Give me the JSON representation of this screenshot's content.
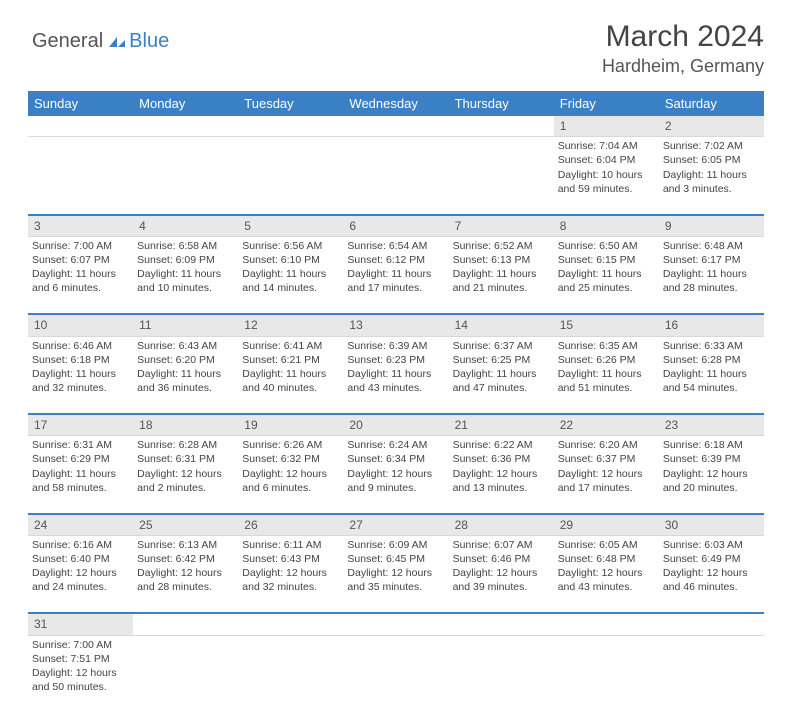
{
  "logo": {
    "part1": "General",
    "part2": "Blue"
  },
  "title": "March 2024",
  "location": "Hardheim, Germany",
  "colors": {
    "header_bg": "#3b7fc4",
    "header_text": "#ffffff",
    "daynum_bg": "#e8e8e8",
    "separator": "#3b7fc4",
    "text": "#444444"
  },
  "weekdays": [
    "Sunday",
    "Monday",
    "Tuesday",
    "Wednesday",
    "Thursday",
    "Friday",
    "Saturday"
  ],
  "weeks": [
    {
      "nums": [
        "",
        "",
        "",
        "",
        "",
        "1",
        "2"
      ],
      "cells": [
        null,
        null,
        null,
        null,
        null,
        {
          "sunrise": "Sunrise: 7:04 AM",
          "sunset": "Sunset: 6:04 PM",
          "daylight": "Daylight: 10 hours and 59 minutes."
        },
        {
          "sunrise": "Sunrise: 7:02 AM",
          "sunset": "Sunset: 6:05 PM",
          "daylight": "Daylight: 11 hours and 3 minutes."
        }
      ]
    },
    {
      "nums": [
        "3",
        "4",
        "5",
        "6",
        "7",
        "8",
        "9"
      ],
      "cells": [
        {
          "sunrise": "Sunrise: 7:00 AM",
          "sunset": "Sunset: 6:07 PM",
          "daylight": "Daylight: 11 hours and 6 minutes."
        },
        {
          "sunrise": "Sunrise: 6:58 AM",
          "sunset": "Sunset: 6:09 PM",
          "daylight": "Daylight: 11 hours and 10 minutes."
        },
        {
          "sunrise": "Sunrise: 6:56 AM",
          "sunset": "Sunset: 6:10 PM",
          "daylight": "Daylight: 11 hours and 14 minutes."
        },
        {
          "sunrise": "Sunrise: 6:54 AM",
          "sunset": "Sunset: 6:12 PM",
          "daylight": "Daylight: 11 hours and 17 minutes."
        },
        {
          "sunrise": "Sunrise: 6:52 AM",
          "sunset": "Sunset: 6:13 PM",
          "daylight": "Daylight: 11 hours and 21 minutes."
        },
        {
          "sunrise": "Sunrise: 6:50 AM",
          "sunset": "Sunset: 6:15 PM",
          "daylight": "Daylight: 11 hours and 25 minutes."
        },
        {
          "sunrise": "Sunrise: 6:48 AM",
          "sunset": "Sunset: 6:17 PM",
          "daylight": "Daylight: 11 hours and 28 minutes."
        }
      ]
    },
    {
      "nums": [
        "10",
        "11",
        "12",
        "13",
        "14",
        "15",
        "16"
      ],
      "cells": [
        {
          "sunrise": "Sunrise: 6:46 AM",
          "sunset": "Sunset: 6:18 PM",
          "daylight": "Daylight: 11 hours and 32 minutes."
        },
        {
          "sunrise": "Sunrise: 6:43 AM",
          "sunset": "Sunset: 6:20 PM",
          "daylight": "Daylight: 11 hours and 36 minutes."
        },
        {
          "sunrise": "Sunrise: 6:41 AM",
          "sunset": "Sunset: 6:21 PM",
          "daylight": "Daylight: 11 hours and 40 minutes."
        },
        {
          "sunrise": "Sunrise: 6:39 AM",
          "sunset": "Sunset: 6:23 PM",
          "daylight": "Daylight: 11 hours and 43 minutes."
        },
        {
          "sunrise": "Sunrise: 6:37 AM",
          "sunset": "Sunset: 6:25 PM",
          "daylight": "Daylight: 11 hours and 47 minutes."
        },
        {
          "sunrise": "Sunrise: 6:35 AM",
          "sunset": "Sunset: 6:26 PM",
          "daylight": "Daylight: 11 hours and 51 minutes."
        },
        {
          "sunrise": "Sunrise: 6:33 AM",
          "sunset": "Sunset: 6:28 PM",
          "daylight": "Daylight: 11 hours and 54 minutes."
        }
      ]
    },
    {
      "nums": [
        "17",
        "18",
        "19",
        "20",
        "21",
        "22",
        "23"
      ],
      "cells": [
        {
          "sunrise": "Sunrise: 6:31 AM",
          "sunset": "Sunset: 6:29 PM",
          "daylight": "Daylight: 11 hours and 58 minutes."
        },
        {
          "sunrise": "Sunrise: 6:28 AM",
          "sunset": "Sunset: 6:31 PM",
          "daylight": "Daylight: 12 hours and 2 minutes."
        },
        {
          "sunrise": "Sunrise: 6:26 AM",
          "sunset": "Sunset: 6:32 PM",
          "daylight": "Daylight: 12 hours and 6 minutes."
        },
        {
          "sunrise": "Sunrise: 6:24 AM",
          "sunset": "Sunset: 6:34 PM",
          "daylight": "Daylight: 12 hours and 9 minutes."
        },
        {
          "sunrise": "Sunrise: 6:22 AM",
          "sunset": "Sunset: 6:36 PM",
          "daylight": "Daylight: 12 hours and 13 minutes."
        },
        {
          "sunrise": "Sunrise: 6:20 AM",
          "sunset": "Sunset: 6:37 PM",
          "daylight": "Daylight: 12 hours and 17 minutes."
        },
        {
          "sunrise": "Sunrise: 6:18 AM",
          "sunset": "Sunset: 6:39 PM",
          "daylight": "Daylight: 12 hours and 20 minutes."
        }
      ]
    },
    {
      "nums": [
        "24",
        "25",
        "26",
        "27",
        "28",
        "29",
        "30"
      ],
      "cells": [
        {
          "sunrise": "Sunrise: 6:16 AM",
          "sunset": "Sunset: 6:40 PM",
          "daylight": "Daylight: 12 hours and 24 minutes."
        },
        {
          "sunrise": "Sunrise: 6:13 AM",
          "sunset": "Sunset: 6:42 PM",
          "daylight": "Daylight: 12 hours and 28 minutes."
        },
        {
          "sunrise": "Sunrise: 6:11 AM",
          "sunset": "Sunset: 6:43 PM",
          "daylight": "Daylight: 12 hours and 32 minutes."
        },
        {
          "sunrise": "Sunrise: 6:09 AM",
          "sunset": "Sunset: 6:45 PM",
          "daylight": "Daylight: 12 hours and 35 minutes."
        },
        {
          "sunrise": "Sunrise: 6:07 AM",
          "sunset": "Sunset: 6:46 PM",
          "daylight": "Daylight: 12 hours and 39 minutes."
        },
        {
          "sunrise": "Sunrise: 6:05 AM",
          "sunset": "Sunset: 6:48 PM",
          "daylight": "Daylight: 12 hours and 43 minutes."
        },
        {
          "sunrise": "Sunrise: 6:03 AM",
          "sunset": "Sunset: 6:49 PM",
          "daylight": "Daylight: 12 hours and 46 minutes."
        }
      ]
    },
    {
      "nums": [
        "31",
        "",
        "",
        "",
        "",
        "",
        ""
      ],
      "cells": [
        {
          "sunrise": "Sunrise: 7:00 AM",
          "sunset": "Sunset: 7:51 PM",
          "daylight": "Daylight: 12 hours and 50 minutes."
        },
        null,
        null,
        null,
        null,
        null,
        null
      ]
    }
  ]
}
